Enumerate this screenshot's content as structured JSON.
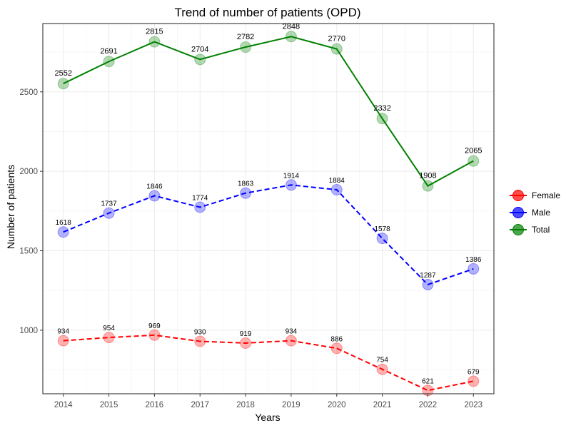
{
  "chart_data": {
    "type": "line",
    "title": "Trend of number of patients (OPD)",
    "xlabel": "Years",
    "ylabel": "Number of patients",
    "x": [
      2014,
      2015,
      2016,
      2017,
      2018,
      2019,
      2020,
      2021,
      2022,
      2023
    ],
    "x_ticks": [
      "2014",
      "2015",
      "2016",
      "2017",
      "2018",
      "2019",
      "2020",
      "2021",
      "2022",
      "2023"
    ],
    "y_ticks": [
      1000,
      1500,
      2000,
      2500
    ],
    "y_tick_labels": [
      "1000",
      "1500",
      "2000",
      "2500"
    ],
    "ylim": [
      600,
      2930
    ],
    "grid": true,
    "legend_position": "right",
    "series": [
      {
        "name": "Female",
        "color": "#ff0000",
        "line_style": "dashed",
        "values": [
          934,
          954,
          969,
          930,
          919,
          934,
          886,
          754,
          621,
          679
        ],
        "labels": [
          "934",
          "954",
          "969",
          "930",
          "919",
          "934",
          "886",
          "754",
          "621",
          "679"
        ]
      },
      {
        "name": "Male",
        "color": "#0000ff",
        "line_style": "dashed",
        "values": [
          1618,
          1737,
          1846,
          1774,
          1863,
          1914,
          1884,
          1578,
          1287,
          1386
        ],
        "labels": [
          "1618",
          "1737",
          "1846",
          "1774",
          "1863",
          "1914",
          "1884",
          "1578",
          "1287",
          "1386"
        ]
      },
      {
        "name": "Total",
        "color": "#008000",
        "line_style": "solid",
        "values": [
          2552,
          2691,
          2815,
          2704,
          2782,
          2848,
          2770,
          2332,
          1908,
          2065
        ],
        "labels": [
          "2552",
          "2691",
          "2815",
          "2704",
          "2782",
          "2848",
          "2770",
          "2332",
          "1908",
          "2065"
        ]
      }
    ]
  }
}
